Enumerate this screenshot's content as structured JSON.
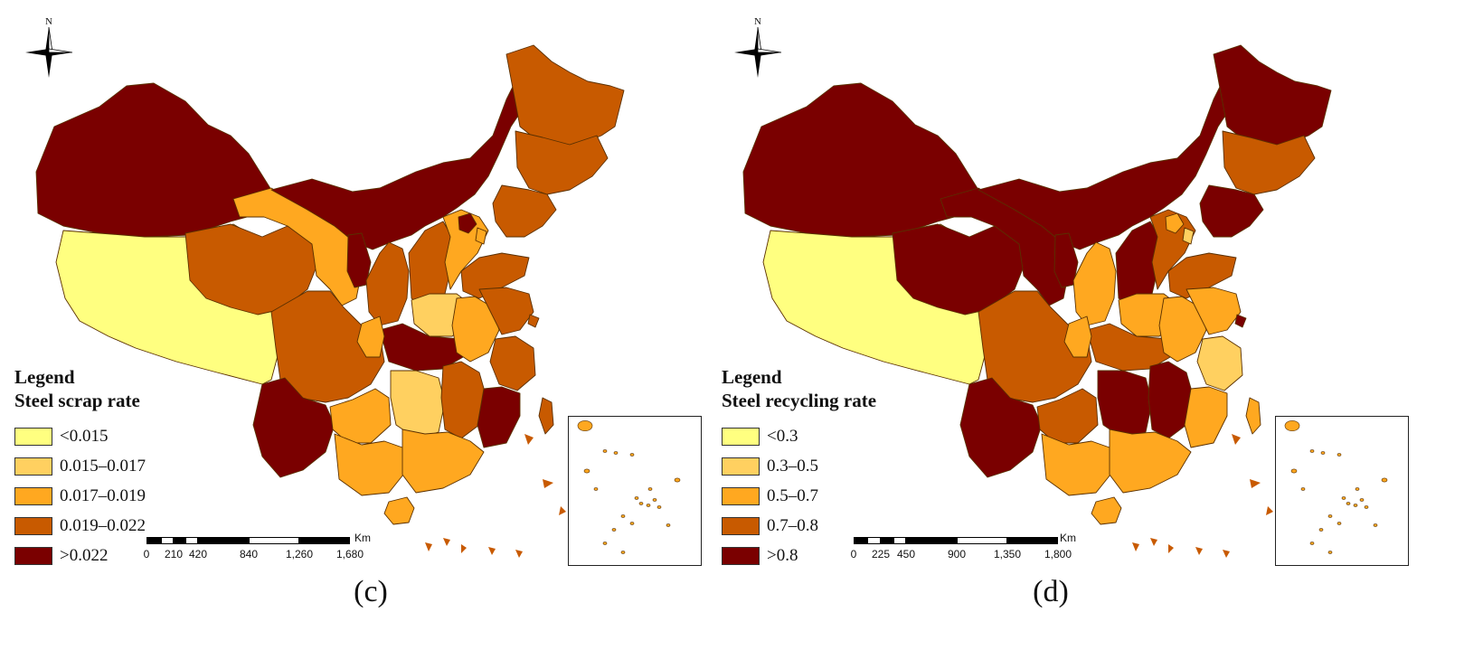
{
  "colors": {
    "c1": "#ffff80",
    "c2": "#ffd060",
    "c3": "#ffa820",
    "c4": "#c85a00",
    "c5": "#7a0000",
    "border": "#5a3000"
  },
  "north_label": "N",
  "panels": [
    {
      "caption": "(c)",
      "legend": {
        "title": "Legend",
        "subtitle": "Steel scrap rate",
        "classes": [
          "<0.015",
          "0.015–0.017",
          "0.017–0.019",
          "0.019–0.022",
          ">0.022"
        ]
      },
      "scale": {
        "unit": "Km",
        "ticks": [
          "0",
          "210",
          "420",
          "840",
          "1,260",
          "1,680"
        ]
      },
      "regions": {
        "xinjiang": 5,
        "tibet": 1,
        "qinghai": 4,
        "gansu": 3,
        "inner_mongolia": 5,
        "heilongjiang": 4,
        "jilin": 4,
        "liaoning": 4,
        "ningxia": 5,
        "shaanxi": 4,
        "shanxi": 4,
        "hebei": 3,
        "beijing": 5,
        "tianjin": 3,
        "shandong": 4,
        "henan": 2,
        "hubei": 5,
        "sichuan": 4,
        "chongqing": 3,
        "yunnan": 5,
        "guizhou": 3,
        "hunan": 2,
        "jiangxi": 4,
        "anhui": 3,
        "jiangsu": 4,
        "zhejiang": 4,
        "fujian": 5,
        "guangxi": 3,
        "guangdong": 3,
        "hainan": 3,
        "shanghai": 4,
        "taiwan": 4
      }
    },
    {
      "caption": "(d)",
      "legend": {
        "title": "Legend",
        "subtitle": "Steel recycling rate",
        "classes": [
          "<0.3",
          "0.3–0.5",
          "0.5–0.7",
          "0.7–0.8",
          ">0.8"
        ]
      },
      "scale": {
        "unit": "Km",
        "ticks": [
          "0",
          "225",
          "450",
          "900",
          "1,350",
          "1,800"
        ]
      },
      "regions": {
        "xinjiang": 5,
        "tibet": 1,
        "qinghai": 5,
        "gansu": 5,
        "inner_mongolia": 5,
        "heilongjiang": 5,
        "jilin": 4,
        "liaoning": 5,
        "ningxia": 5,
        "shaanxi": 3,
        "shanxi": 5,
        "hebei": 4,
        "beijing": 3,
        "tianjin": 2,
        "shandong": 4,
        "henan": 3,
        "hubei": 4,
        "sichuan": 4,
        "chongqing": 3,
        "yunnan": 5,
        "guizhou": 4,
        "hunan": 5,
        "jiangxi": 5,
        "anhui": 3,
        "jiangsu": 3,
        "zhejiang": 2,
        "fujian": 3,
        "guangxi": 3,
        "guangdong": 3,
        "hainan": 3,
        "shanghai": 5,
        "taiwan": 3
      }
    }
  ]
}
